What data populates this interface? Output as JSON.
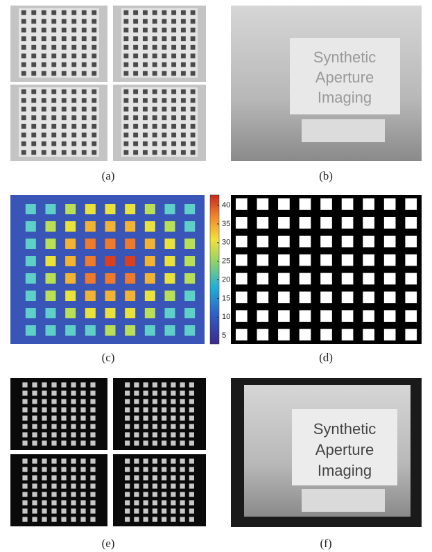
{
  "panels": [
    {
      "label": "(a)"
    },
    {
      "label": "(b)",
      "sign_text": [
        "Synthetic",
        "Aperture",
        "Imaging"
      ]
    },
    {
      "label": "(c)",
      "colorbar": {
        "range": [
          2.8,
          42.8
        ],
        "ticks": [
          5,
          10,
          15,
          20,
          25,
          30,
          35,
          40
        ]
      }
    },
    {
      "label": "(d)"
    },
    {
      "label": "(e)"
    },
    {
      "label": "(f)",
      "sign_text": [
        "Synthetic",
        "Aperture",
        "Imaging"
      ]
    }
  ]
}
